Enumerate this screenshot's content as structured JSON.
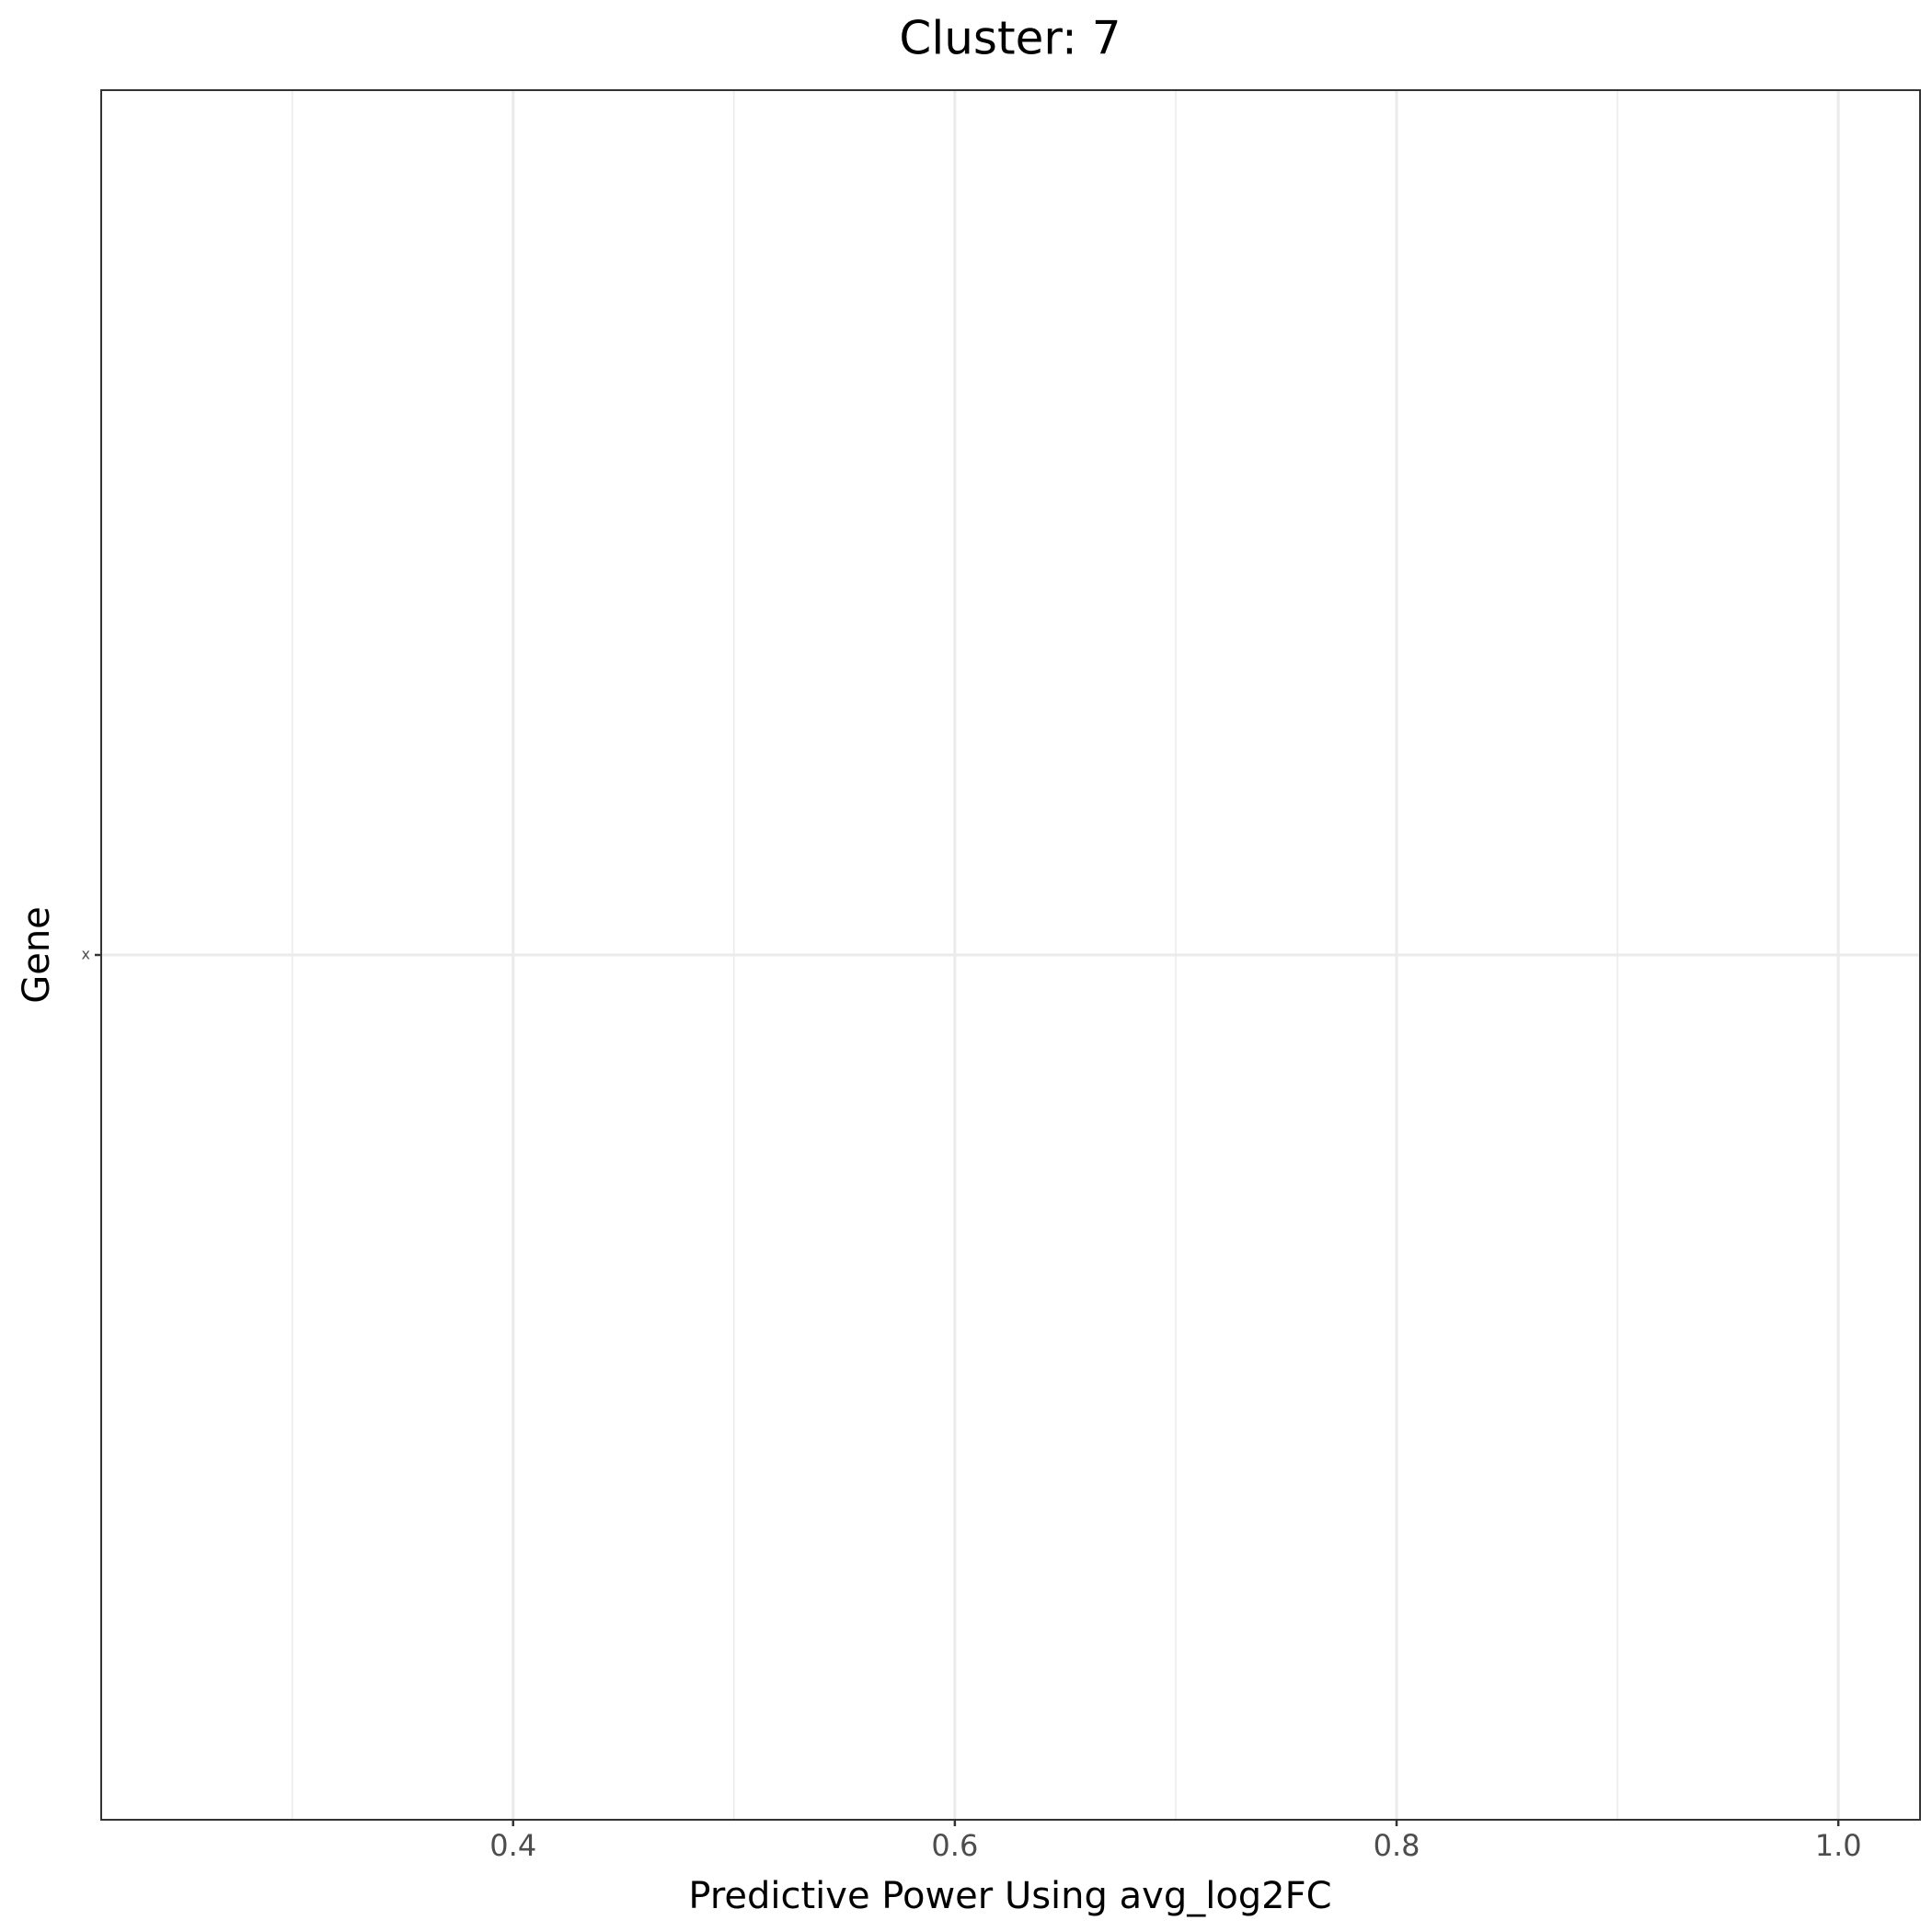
{
  "chart_data": {
    "type": "bar",
    "orientation": "horizontal",
    "title": "Cluster: 7",
    "x_label": "Predictive Power Using avg_log2FC",
    "y_label": "Gene",
    "categories": [
      "x"
    ],
    "values": [
      null
    ],
    "color": "#595959",
    "xlim": [
      0.2135,
      1.037
    ],
    "xticks": [
      0.4,
      0.6,
      0.8,
      {
        "value": 1,
        "label": "1.0"
      }
    ],
    "x_minor_ticks": [
      0.3,
      0.5,
      0.7,
      0.9
    ],
    "grid": true
  }
}
